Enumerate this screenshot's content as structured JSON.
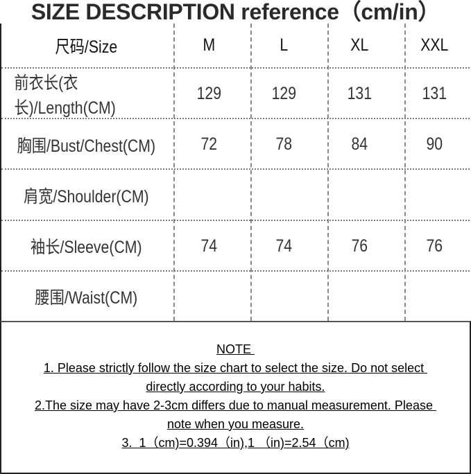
{
  "title": "SIZE DESCRIPTION reference（cm/in）",
  "table": {
    "header": [
      "尺码/Size",
      "M",
      "L",
      "XL",
      "XXL"
    ],
    "rows": [
      {
        "label": "前衣长(衣长)/Length(CM)",
        "values": [
          "129",
          "129",
          "131",
          "131"
        ]
      },
      {
        "label": "胸围/Bust/Chest(CM)",
        "values": [
          "72",
          "78",
          "84",
          "90"
        ]
      },
      {
        "label": "肩宽/Shoulder(CM)",
        "values": [
          "",
          "",
          "",
          ""
        ]
      },
      {
        "label": "袖长/Sleeve(CM)",
        "values": [
          "74",
          "74",
          "76",
          "76"
        ]
      },
      {
        "label": "腰围/Waist(CM)",
        "values": [
          "",
          "",
          "",
          ""
        ]
      }
    ]
  },
  "note": {
    "heading": "NOTE ",
    "lines": [
      "1. Please strictly follow the size chart to select the size. Do not select ",
      "directly according to your habits.",
      "2.The size may have 2-3cm differs due to manual measurement. Please ",
      "note when you measure.",
      "3.  1（cm)=0.394（in),1 （in)=2.54（cm)"
    ]
  }
}
